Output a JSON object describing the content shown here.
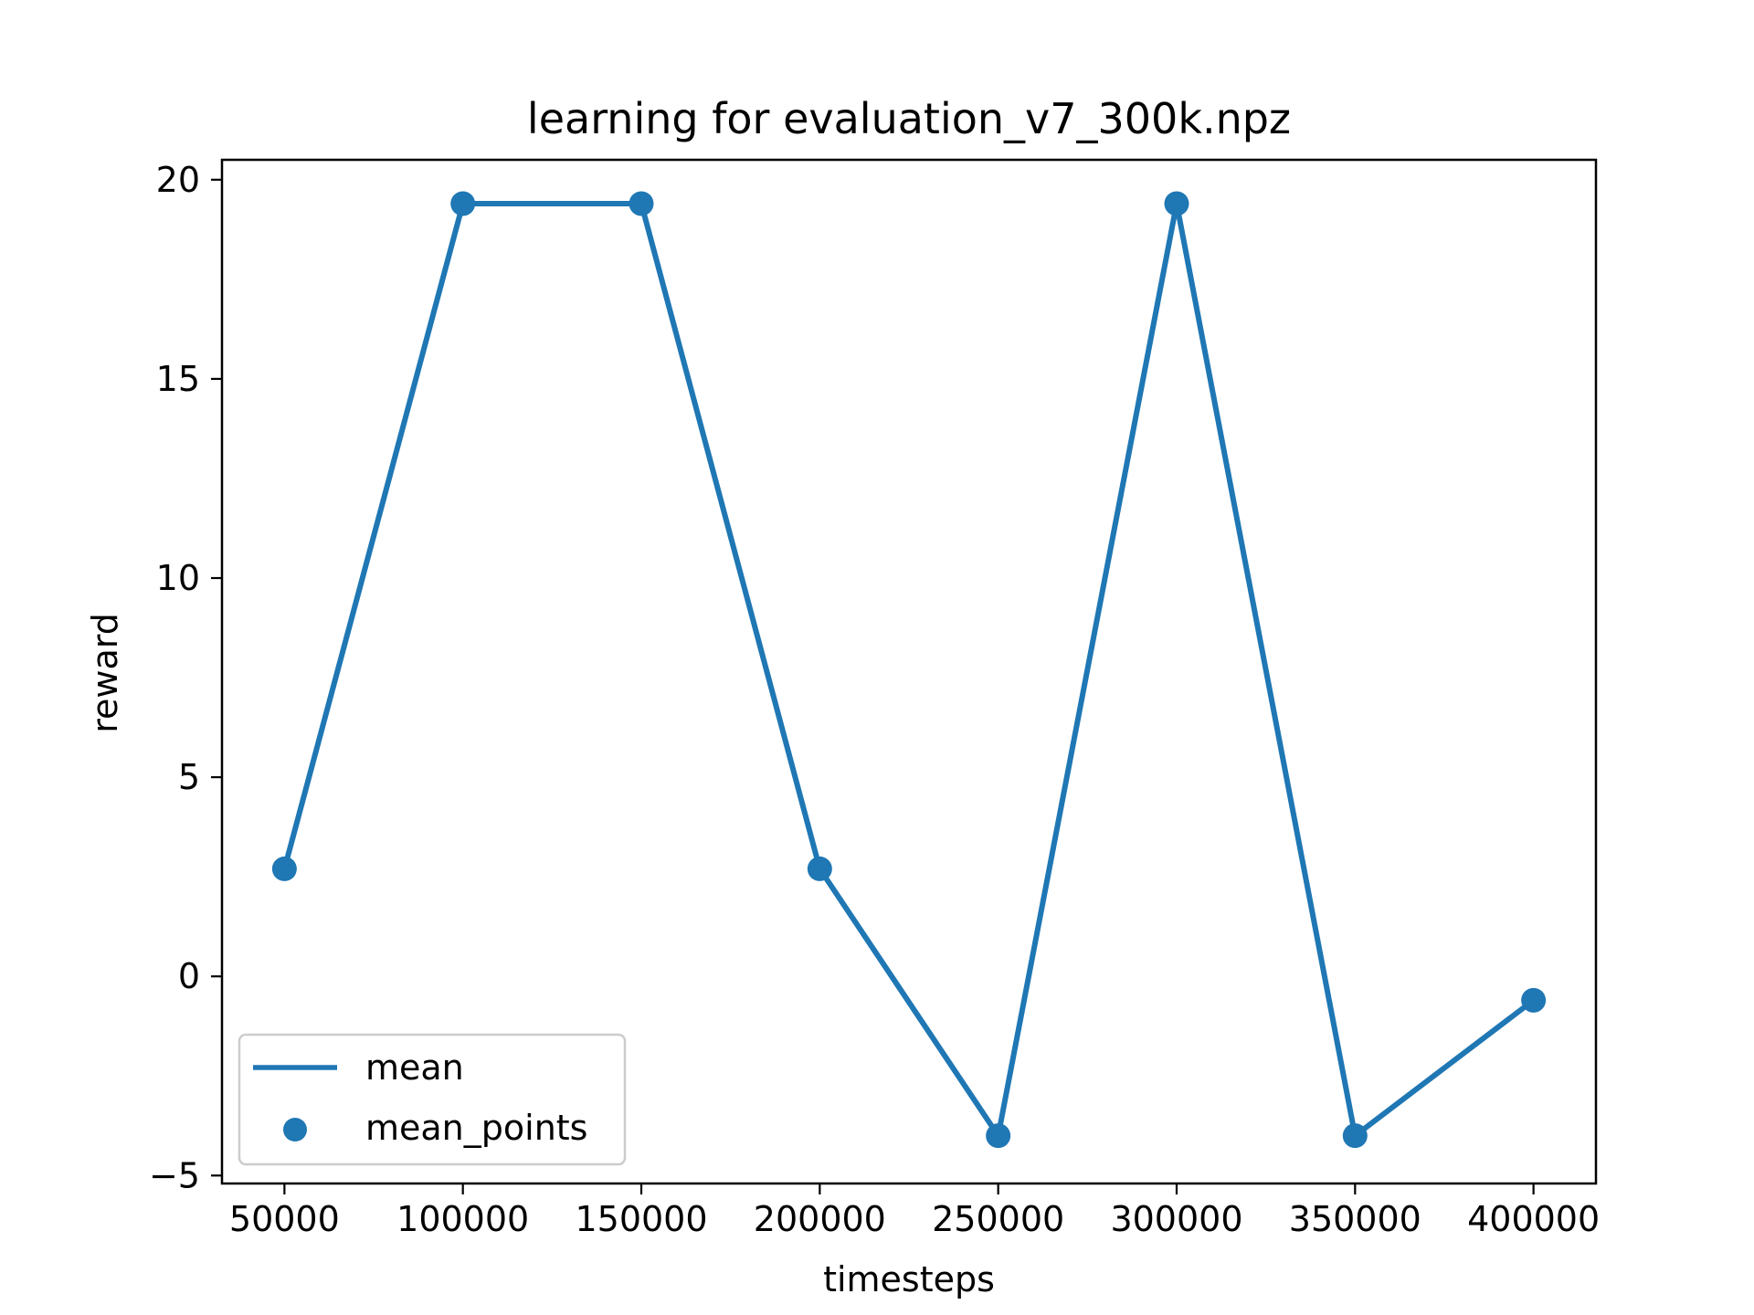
{
  "chart_data": {
    "type": "line",
    "title": "learning for evaluation_v7_300k.npz",
    "xlabel": "timesteps",
    "ylabel": "reward",
    "xlim": [
      32500,
      417500
    ],
    "ylim": [
      -5.2,
      20.5
    ],
    "xticks": [
      50000,
      100000,
      150000,
      200000,
      250000,
      300000,
      350000,
      400000
    ],
    "xtick_labels": [
      "50000",
      "100000",
      "150000",
      "200000",
      "250000",
      "300000",
      "350000",
      "400000"
    ],
    "yticks": [
      -5,
      0,
      5,
      10,
      15,
      20
    ],
    "ytick_labels": [
      "−5",
      "0",
      "5",
      "10",
      "15",
      "20"
    ],
    "grid": false,
    "legend_position": "lower-left",
    "x": [
      50000,
      100000,
      150000,
      200000,
      250000,
      300000,
      350000,
      400000
    ],
    "series": [
      {
        "name": "mean",
        "kind": "line",
        "color": "#1f77b4",
        "values": [
          2.7,
          19.4,
          19.4,
          2.7,
          -4.0,
          19.4,
          -4.0,
          -0.6
        ]
      },
      {
        "name": "mean_points",
        "kind": "scatter",
        "color": "#1f77b4",
        "values": [
          2.7,
          19.4,
          19.4,
          2.7,
          -4.0,
          19.4,
          -4.0,
          -0.6
        ]
      }
    ]
  }
}
